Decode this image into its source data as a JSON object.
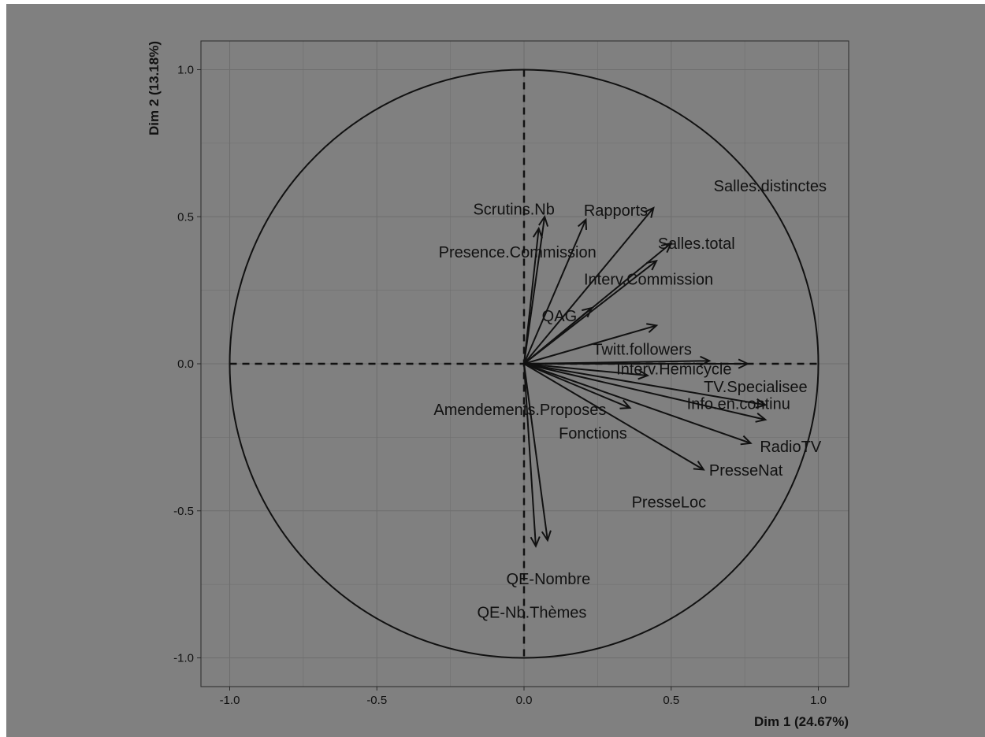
{
  "chart_data": {
    "type": "scatter",
    "subtype": "pca-variables-correlation-circle",
    "title": "",
    "xlabel": "Dim 1 (24.67%)",
    "ylabel": "Dim 2 (13.18%)",
    "xlim": [
      -1.1,
      1.1
    ],
    "ylim": [
      -1.1,
      1.1
    ],
    "xticks": [
      -1.0,
      -0.5,
      0.0,
      0.5,
      1.0
    ],
    "yticks": [
      -1.0,
      -0.5,
      0.0,
      0.5,
      1.0
    ],
    "xtick_labels": [
      "-1.0",
      "-0.5",
      "0.0",
      "0.5",
      "1.0"
    ],
    "ytick_labels": [
      "-1.0",
      "-0.5",
      "0.0",
      "0.5",
      "1.0"
    ],
    "grid": true,
    "unit_circle": true,
    "colors": {
      "background": "#808080",
      "grid": "#6e6e6e",
      "ink": "#111111"
    },
    "variables": [
      {
        "name": "Salles.distinctes",
        "x": 0.44,
        "y": 0.53
      },
      {
        "name": "Scrutins.Nb",
        "x": 0.07,
        "y": 0.5
      },
      {
        "name": "Rapports",
        "x": 0.21,
        "y": 0.49
      },
      {
        "name": "Presence.Commission",
        "x": 0.05,
        "y": 0.46
      },
      {
        "name": "Salles.total",
        "x": 0.5,
        "y": 0.41
      },
      {
        "name": "Interv.Commission",
        "x": 0.45,
        "y": 0.35
      },
      {
        "name": "QAG",
        "x": 0.23,
        "y": 0.19
      },
      {
        "name": "Twitt.followers",
        "x": 0.45,
        "y": 0.13
      },
      {
        "name": "Interv.Hemicycle",
        "x": 0.63,
        "y": 0.01
      },
      {
        "name": "TV.Specialisee",
        "x": 0.76,
        "y": 0.0
      },
      {
        "name": "Amendements.Proposes",
        "x": 0.42,
        "y": -0.04
      },
      {
        "name": "Info.en.continu",
        "x": 0.82,
        "y": -0.14
      },
      {
        "name": "Fonctions",
        "x": 0.36,
        "y": -0.15
      },
      {
        "name": "RadioTV",
        "x": 0.82,
        "y": -0.19
      },
      {
        "name": "PresseNat",
        "x": 0.77,
        "y": -0.27
      },
      {
        "name": "PresseLoc",
        "x": 0.61,
        "y": -0.36
      },
      {
        "name": "QE-Nombre",
        "x": 0.08,
        "y": -0.6
      },
      {
        "name": "QE-Nb.Thèmes",
        "x": 0.04,
        "y": -0.62
      }
    ]
  }
}
